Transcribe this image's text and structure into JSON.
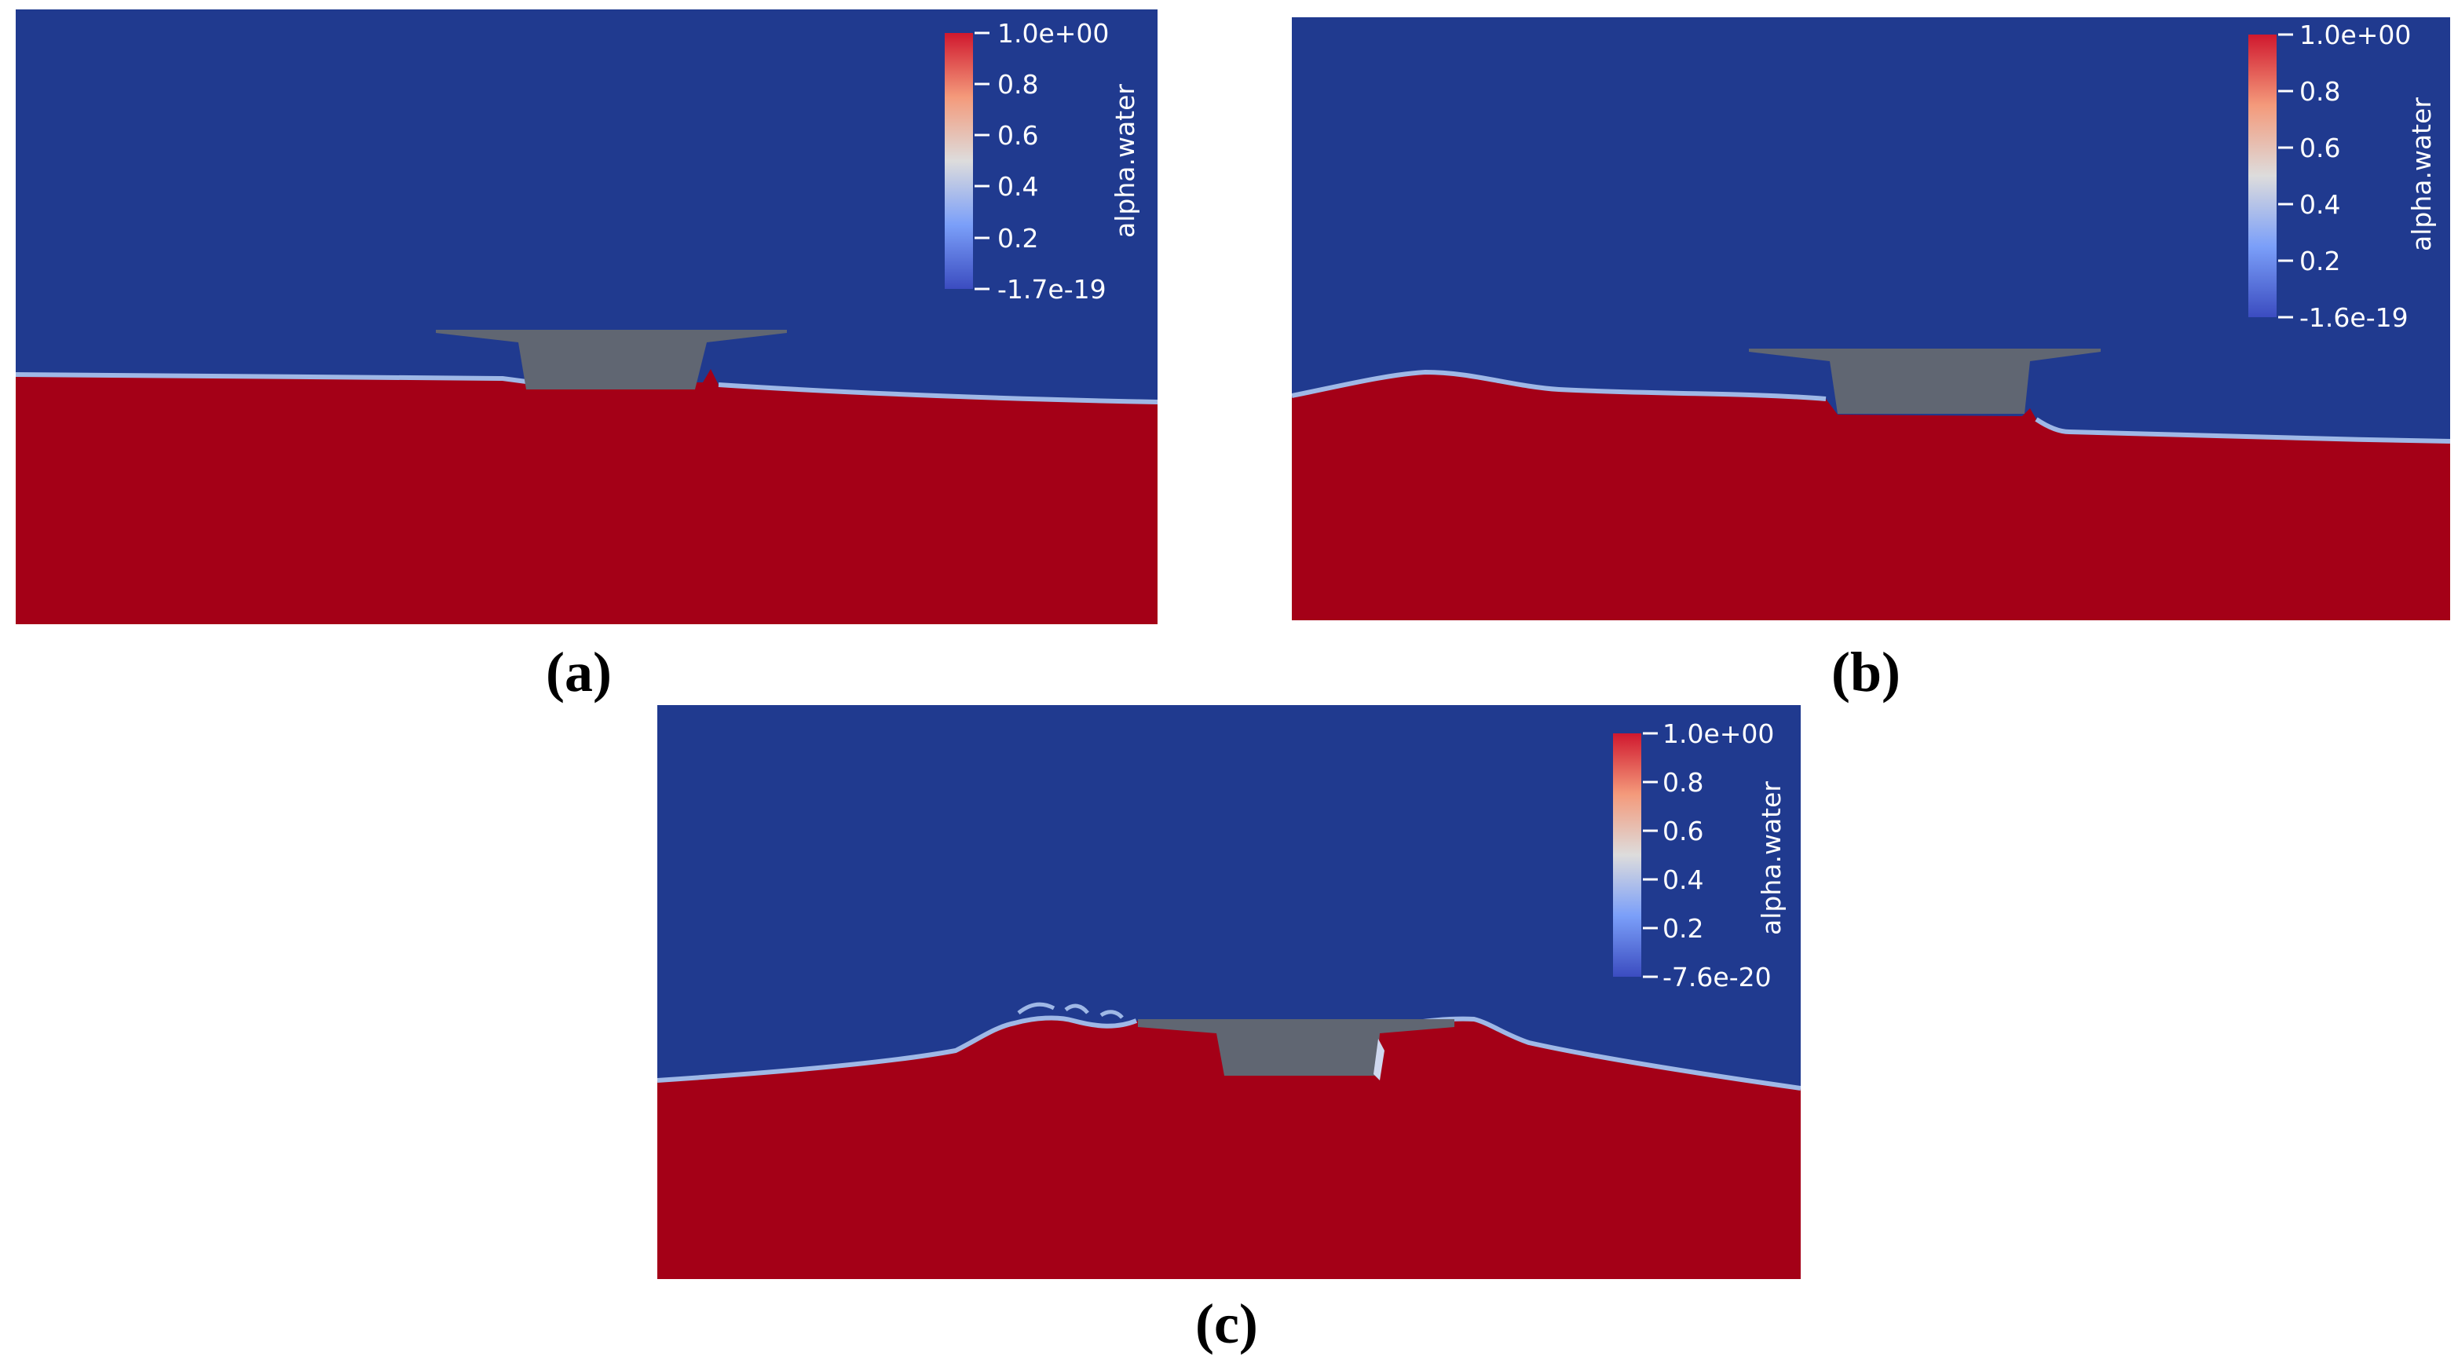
{
  "colors": {
    "air": "#203a8f",
    "water": "#a40017",
    "structure": "#606672",
    "interface": "#9fb8e6"
  },
  "panels": [
    {
      "id": "a",
      "caption": "(a)",
      "colorbar": {
        "title": "alpha.water",
        "ticks": [
          "1.0e+00",
          "0.8",
          "0.6",
          "0.4",
          "0.2",
          "-1.7e-19"
        ]
      }
    },
    {
      "id": "b",
      "caption": "(b)",
      "colorbar": {
        "title": "alpha.water",
        "ticks": [
          "1.0e+00",
          "0.8",
          "0.6",
          "0.4",
          "0.2",
          "-1.6e-19"
        ]
      }
    },
    {
      "id": "c",
      "caption": "(c)",
      "colorbar": {
        "title": "alpha.water",
        "ticks": [
          "1.0e+00",
          "0.8",
          "0.6",
          "0.4",
          "0.2",
          "-7.6e-20"
        ]
      }
    }
  ]
}
